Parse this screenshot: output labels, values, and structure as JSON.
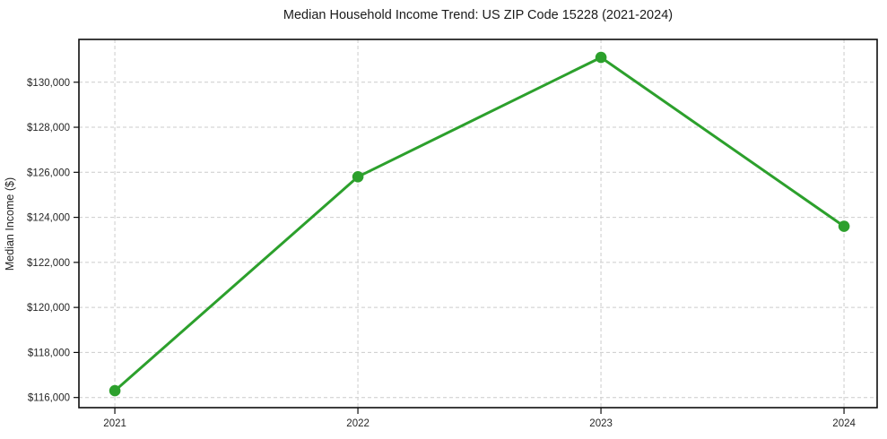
{
  "chart_data": {
    "type": "line",
    "title": "Median Household Income Trend: US ZIP Code 15228 (2021-2024)",
    "xlabel": "",
    "ylabel": "Median Income ($)",
    "categories": [
      "2021",
      "2022",
      "2023",
      "2024"
    ],
    "values": [
      116300,
      125800,
      131100,
      123600
    ],
    "ylim": [
      115550,
      131900
    ],
    "yticks": [
      116000,
      118000,
      120000,
      122000,
      124000,
      126000,
      128000,
      130000
    ],
    "ytick_labels": [
      "$116,000",
      "$118,000",
      "$120,000",
      "$122,000",
      "$124,000",
      "$126,000",
      "$128,000",
      "$130,000"
    ],
    "grid": "dashed-both",
    "legend": "none",
    "line_color": "#2ca02c",
    "marker_color": "#2ca02c",
    "grid_color": "#cccccc",
    "axis_color": "#0d0d0d",
    "text_color": "#262626"
  }
}
